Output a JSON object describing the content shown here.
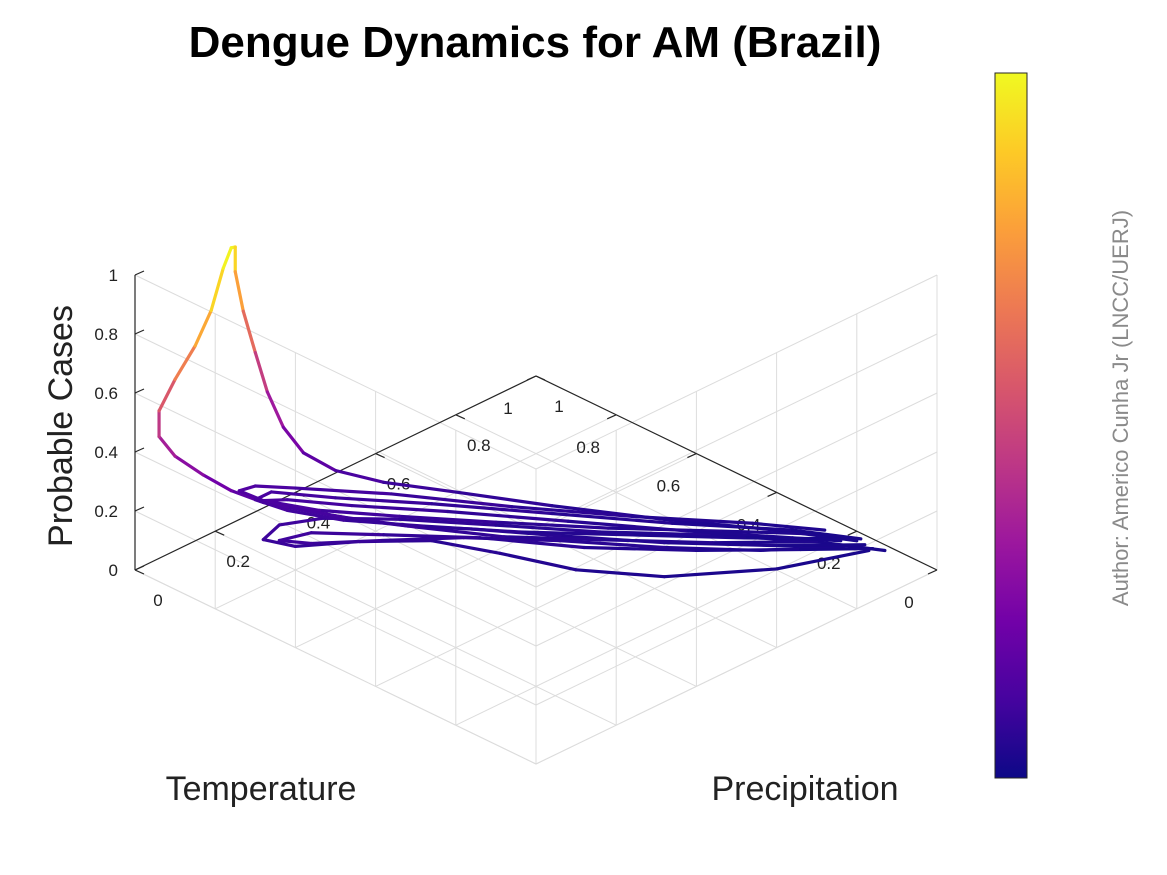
{
  "chart_data": {
    "type": "line3d",
    "title": "Dengue Dynamics for AM (Brazil)",
    "xlabel": "Temperature",
    "ylabel": "Precipitation",
    "zlabel": "Probable Cases",
    "x_ticks": [
      "0",
      "0.2",
      "0.4",
      "0.6",
      "0.8",
      "1"
    ],
    "y_ticks": [
      "0",
      "0.2",
      "0.4",
      "0.6",
      "0.8",
      "1"
    ],
    "z_ticks": [
      "0",
      "0.2",
      "0.4",
      "0.6",
      "0.8",
      "1"
    ],
    "xlim": [
      0,
      1
    ],
    "ylim": [
      0,
      1
    ],
    "zlim": [
      0,
      1
    ],
    "grid": true,
    "colormap": "plasma",
    "colorbar": "right",
    "colors": [
      "#0d0887",
      "#46039f",
      "#7201a8",
      "#9c179e",
      "#bd3786",
      "#d8576b",
      "#ed7953",
      "#fb9f3a",
      "#fdca26",
      "#f0f921"
    ],
    "series": [
      {
        "segments": [
          {
            "points": [
              [
                0.95,
                0.12,
                0.02
              ],
              [
                0.78,
                0.18,
                0.03
              ],
              [
                0.62,
                0.3,
                0.03
              ],
              [
                0.52,
                0.42,
                0.04
              ],
              [
                0.46,
                0.55,
                0.05
              ],
              [
                0.4,
                0.66,
                0.06
              ],
              [
                0.3,
                0.74,
                0.07
              ],
              [
                0.2,
                0.8,
                0.08
              ],
              [
                0.17,
                0.85,
                0.09
              ],
              [
                0.22,
                0.86,
                0.1
              ],
              [
                0.3,
                0.83,
                0.09
              ],
              [
                0.4,
                0.74,
                0.08
              ],
              [
                0.52,
                0.62,
                0.06
              ],
              [
                0.64,
                0.48,
                0.05
              ],
              [
                0.78,
                0.34,
                0.04
              ],
              [
                0.9,
                0.2,
                0.03
              ],
              [
                0.97,
                0.1,
                0.02
              ]
            ]
          },
          {
            "points": [
              [
                0.93,
                0.15,
                0.03
              ],
              [
                0.8,
                0.24,
                0.04
              ],
              [
                0.68,
                0.36,
                0.05
              ],
              [
                0.56,
                0.5,
                0.06
              ],
              [
                0.44,
                0.62,
                0.07
              ],
              [
                0.32,
                0.71,
                0.08
              ],
              [
                0.22,
                0.78,
                0.09
              ],
              [
                0.18,
                0.82,
                0.1
              ],
              [
                0.24,
                0.8,
                0.1
              ],
              [
                0.34,
                0.72,
                0.08
              ],
              [
                0.46,
                0.6,
                0.07
              ],
              [
                0.58,
                0.46,
                0.05
              ],
              [
                0.72,
                0.32,
                0.04
              ],
              [
                0.86,
                0.2,
                0.03
              ],
              [
                0.96,
                0.12,
                0.02
              ]
            ]
          },
          {
            "points": [
              [
                0.96,
                0.14,
                0.02
              ],
              [
                0.84,
                0.24,
                0.03
              ],
              [
                0.7,
                0.38,
                0.04
              ],
              [
                0.58,
                0.52,
                0.05
              ],
              [
                0.48,
                0.64,
                0.06
              ],
              [
                0.4,
                0.72,
                0.07
              ],
              [
                0.34,
                0.78,
                0.09
              ],
              [
                0.3,
                0.82,
                0.11
              ],
              [
                0.26,
                0.86,
                0.13
              ],
              [
                0.22,
                0.9,
                0.15
              ],
              [
                0.18,
                0.94,
                0.19
              ],
              [
                0.14,
                0.97,
                0.25
              ],
              [
                0.1,
                1.0,
                0.32
              ],
              [
                0.07,
                1.01,
                0.4
              ],
              [
                0.06,
                1.0,
                0.5
              ],
              [
                0.07,
                0.97,
                0.62
              ],
              [
                0.09,
                0.94,
                0.74
              ],
              [
                0.11,
                0.92,
                0.86
              ],
              [
                0.15,
                0.93,
                0.97
              ],
              [
                0.19,
                0.95,
                1.0
              ],
              [
                0.22,
                0.97,
                0.97
              ],
              [
                0.24,
                0.99,
                0.86
              ],
              [
                0.27,
                1.0,
                0.7
              ],
              [
                0.3,
                1.0,
                0.54
              ],
              [
                0.32,
                0.99,
                0.4
              ],
              [
                0.34,
                0.97,
                0.28
              ],
              [
                0.36,
                0.94,
                0.2
              ],
              [
                0.4,
                0.9,
                0.14
              ],
              [
                0.46,
                0.84,
                0.1
              ],
              [
                0.54,
                0.74,
                0.08
              ],
              [
                0.64,
                0.6,
                0.06
              ],
              [
                0.76,
                0.44,
                0.04
              ],
              [
                0.88,
                0.28,
                0.03
              ],
              [
                0.96,
                0.16,
                0.02
              ]
            ]
          },
          {
            "points": [
              [
                0.92,
                0.22,
                0.03
              ],
              [
                0.8,
                0.34,
                0.04
              ],
              [
                0.66,
                0.48,
                0.05
              ],
              [
                0.52,
                0.62,
                0.07
              ],
              [
                0.4,
                0.74,
                0.09
              ],
              [
                0.3,
                0.84,
                0.11
              ],
              [
                0.24,
                0.92,
                0.13
              ],
              [
                0.22,
                0.96,
                0.15
              ],
              [
                0.26,
                0.96,
                0.14
              ],
              [
                0.32,
                0.92,
                0.12
              ],
              [
                0.44,
                0.8,
                0.1
              ],
              [
                0.58,
                0.64,
                0.07
              ],
              [
                0.72,
                0.48,
                0.05
              ],
              [
                0.86,
                0.32,
                0.04
              ],
              [
                0.94,
                0.22,
                0.03
              ]
            ]
          },
          {
            "points": [
              [
                0.9,
                0.2,
                0.03
              ],
              [
                0.76,
                0.32,
                0.04
              ],
              [
                0.62,
                0.46,
                0.05
              ],
              [
                0.5,
                0.58,
                0.06
              ],
              [
                0.4,
                0.7,
                0.08
              ],
              [
                0.32,
                0.8,
                0.1
              ],
              [
                0.26,
                0.88,
                0.12
              ],
              [
                0.24,
                0.92,
                0.13
              ],
              [
                0.28,
                0.9,
                0.12
              ],
              [
                0.36,
                0.82,
                0.1
              ],
              [
                0.48,
                0.7,
                0.08
              ],
              [
                0.62,
                0.54,
                0.06
              ],
              [
                0.76,
                0.38,
                0.04
              ],
              [
                0.88,
                0.24,
                0.03
              ],
              [
                0.94,
                0.18,
                0.02
              ]
            ]
          },
          {
            "points": [
              [
                0.95,
                0.18,
                0.02
              ],
              [
                0.82,
                0.3,
                0.03
              ],
              [
                0.68,
                0.44,
                0.04
              ],
              [
                0.54,
                0.58,
                0.05
              ],
              [
                0.42,
                0.7,
                0.07
              ],
              [
                0.32,
                0.8,
                0.09
              ],
              [
                0.26,
                0.88,
                0.11
              ],
              [
                0.24,
                0.94,
                0.12
              ],
              [
                0.28,
                0.94,
                0.12
              ],
              [
                0.36,
                0.86,
                0.1
              ],
              [
                0.48,
                0.74,
                0.08
              ],
              [
                0.62,
                0.58,
                0.06
              ],
              [
                0.76,
                0.42,
                0.04
              ],
              [
                0.9,
                0.26,
                0.03
              ],
              [
                0.97,
                0.16,
                0.02
              ]
            ]
          }
        ]
      }
    ],
    "credit": "Author: Americo Cunha Jr (LNCC/UERJ)"
  }
}
